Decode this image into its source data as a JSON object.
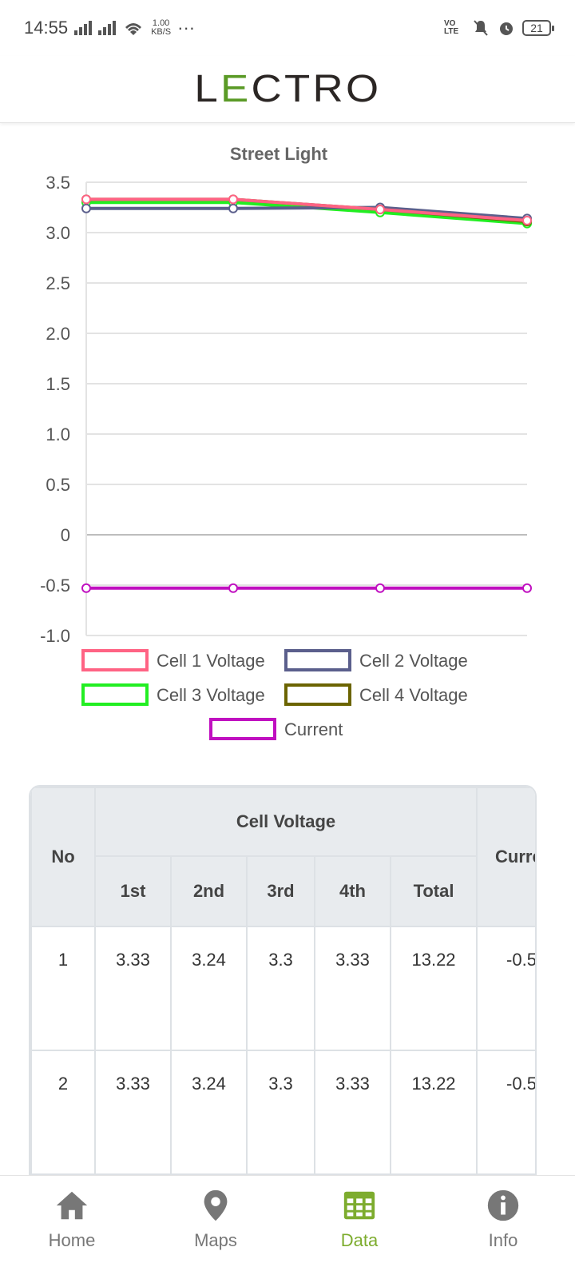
{
  "status_bar": {
    "time": "14:55",
    "net_speed_value": "1.00",
    "net_speed_unit": "KB/S",
    "more": "···",
    "volte": "VO LTE",
    "battery": "21"
  },
  "header": {
    "logo_prefix": "L",
    "logo_e": "E",
    "logo_suffix": "CTRO"
  },
  "chart_data": {
    "type": "line",
    "title": "Street Light",
    "xlabel": "",
    "ylabel": "",
    "ylim": [
      -1.0,
      3.5
    ],
    "yticks": [
      "3.5",
      "3.0",
      "2.5",
      "2.0",
      "1.5",
      "1.0",
      "0.5",
      "0",
      "-0.5",
      "-1.0"
    ],
    "x": [
      1,
      2,
      3,
      4
    ],
    "series": [
      {
        "name": "Cell 1 Voltage",
        "color": "#ff6384",
        "values": [
          3.33,
          3.33,
          3.23,
          3.12
        ]
      },
      {
        "name": "Cell 2 Voltage",
        "color": "#5b5f8c",
        "values": [
          3.24,
          3.24,
          3.25,
          3.14
        ]
      },
      {
        "name": "Cell 3 Voltage",
        "color": "#22ee22",
        "values": [
          3.3,
          3.3,
          3.2,
          3.09
        ]
      },
      {
        "name": "Cell 4 Voltage",
        "color": "#6b6400",
        "values": [
          3.33,
          3.33,
          3.23,
          3.11
        ]
      },
      {
        "name": "Current",
        "color": "#c010c0",
        "values": [
          -0.53,
          -0.53,
          -0.53,
          -0.53
        ]
      }
    ],
    "grid": true,
    "legend": "bottom"
  },
  "table": {
    "header_no": "No",
    "header_group": "Cell Voltage",
    "header_current": "Curre",
    "sub_headers": [
      "1st",
      "2nd",
      "3rd",
      "4th",
      "Total"
    ],
    "rows": [
      {
        "no": "1",
        "c1": "3.33",
        "c2": "3.24",
        "c3": "3.3",
        "c4": "3.33",
        "total": "13.22",
        "current": "-0.5"
      },
      {
        "no": "2",
        "c1": "3.33",
        "c2": "3.24",
        "c3": "3.3",
        "c4": "3.33",
        "total": "13.22",
        "current": "-0.5"
      },
      {
        "no": "",
        "c1": "",
        "c2": "",
        "c3": "",
        "c4": "",
        "total": "",
        "current": ""
      }
    ]
  },
  "nav": [
    {
      "label": "Home",
      "icon": "home-icon"
    },
    {
      "label": "Maps",
      "icon": "map-pin-icon"
    },
    {
      "label": "Data",
      "icon": "grid-table-icon"
    },
    {
      "label": "Info",
      "icon": "info-icon"
    }
  ],
  "colors": {
    "accent": "#7dac2e",
    "inactive": "#777777"
  }
}
